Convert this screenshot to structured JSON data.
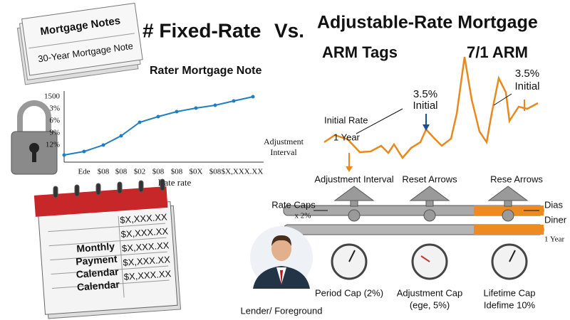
{
  "notes": {
    "title": "Mortgage Notes",
    "subtitle": "30-Year Mortgage Note"
  },
  "header": {
    "fixed": "# Fixed-Rate",
    "vs": "Vs.",
    "adjustable": "Adjustable-Rate Mortgage",
    "arm_tags": "ARM Tags",
    "arm_type": "7/1 ARM"
  },
  "fixed_panel": {
    "title": "Rater Mortgage Note",
    "y_labels": [
      "1500",
      "3%",
      "6%",
      "9%",
      "12%"
    ],
    "x_labels": [
      "Ede",
      "$08",
      "$08",
      "$02",
      "$08",
      "$08",
      "$0X",
      "$08",
      "$X,XXX.XX"
    ],
    "x_title": "Rate rate"
  },
  "calendar": {
    "rows": [
      "Monthly",
      "Payment",
      "Calendar",
      "Calendar"
    ],
    "amounts": [
      "$X,XXX.XX",
      "$X,XXX.XX",
      "$X,XXX.XX",
      "$X,XXX.XX",
      "$X,XXX.XX"
    ]
  },
  "arm_panel": {
    "first_peak": [
      "3.5%",
      "Initial"
    ],
    "second_peak": [
      "3.5%",
      "Initial"
    ],
    "initial_rate": "Initial Rate",
    "one_year": "1 Year",
    "adjustment_interval": [
      "Adjustment",
      "Interval"
    ],
    "pipe_labels": [
      "Adjustment Interval",
      "Reset Arrows",
      "Rese Arrows"
    ],
    "rate_caps": "Rate Caps",
    "rate_caps_value": "x 2%",
    "right_labels": [
      "Dias",
      "Diner",
      "1 Year"
    ],
    "gauges": [
      [
        "Period Cap (2%)"
      ],
      [
        "Adjustment Cap",
        "(ege, 5%)"
      ],
      [
        "Lifetime Cap",
        "Idefime 10%"
      ]
    ],
    "lender": "Lender/ Foreground"
  }
}
